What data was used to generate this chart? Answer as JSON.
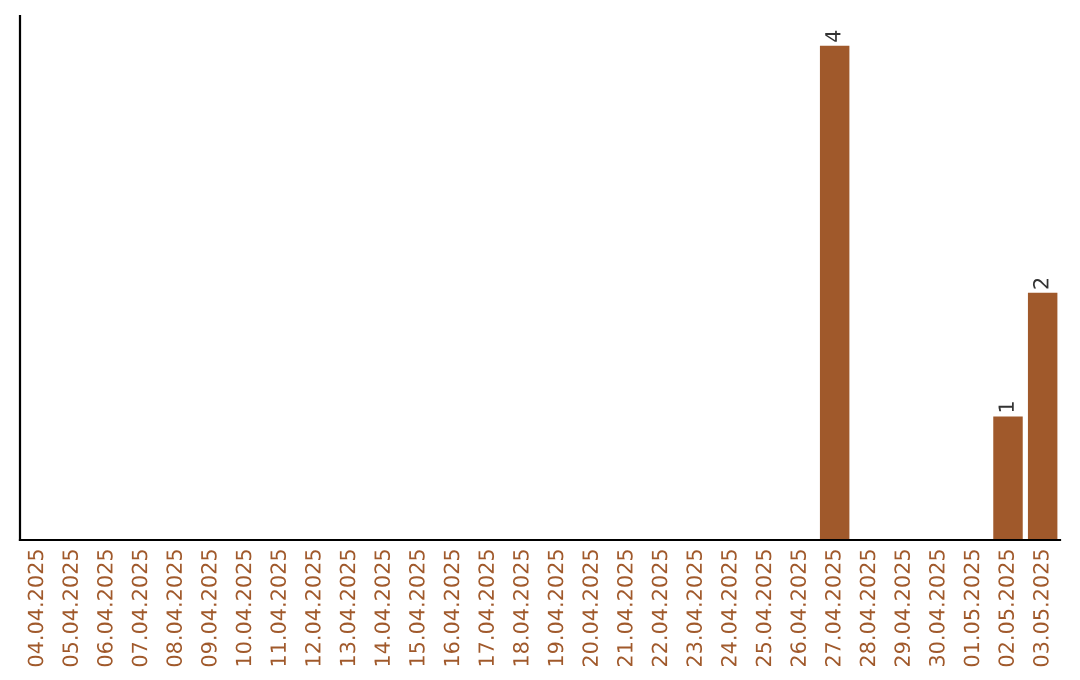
{
  "chart_data": {
    "type": "bar",
    "categories": [
      "04.04.2025",
      "05.04.2025",
      "06.04.2025",
      "07.04.2025",
      "08.04.2025",
      "09.04.2025",
      "10.04.2025",
      "11.04.2025",
      "12.04.2025",
      "13.04.2025",
      "14.04.2025",
      "15.04.2025",
      "16.04.2025",
      "17.04.2025",
      "18.04.2025",
      "19.04.2025",
      "20.04.2025",
      "21.04.2025",
      "22.04.2025",
      "23.04.2025",
      "24.04.2025",
      "25.04.2025",
      "26.04.2025",
      "27.04.2025",
      "28.04.2025",
      "29.04.2025",
      "30.04.2025",
      "01.05.2025",
      "02.05.2025",
      "03.05.2025"
    ],
    "values": [
      null,
      null,
      null,
      null,
      null,
      null,
      null,
      null,
      null,
      null,
      null,
      null,
      null,
      null,
      null,
      null,
      null,
      null,
      null,
      null,
      null,
      null,
      null,
      4,
      null,
      null,
      null,
      null,
      1,
      2
    ],
    "value_labels": [
      null,
      null,
      null,
      null,
      null,
      null,
      null,
      null,
      null,
      null,
      null,
      null,
      null,
      null,
      null,
      null,
      null,
      null,
      null,
      null,
      null,
      null,
      null,
      "4",
      null,
      null,
      null,
      null,
      "1",
      "2"
    ],
    "color": "#a0592b",
    "tick_labels": "x",
    "grid": false
  }
}
